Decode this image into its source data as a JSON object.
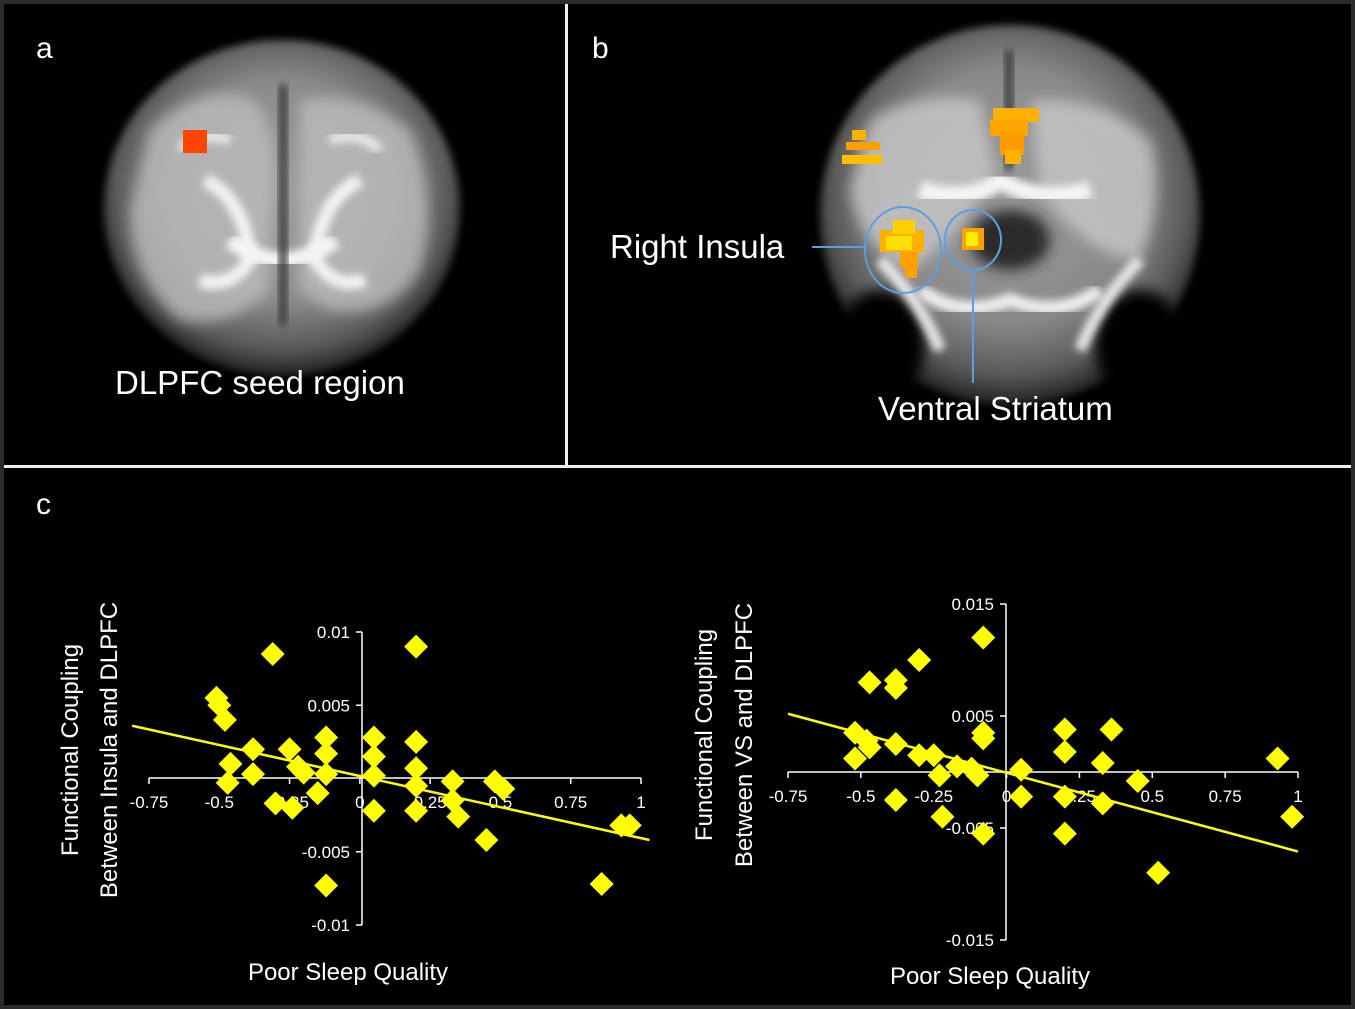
{
  "panels": {
    "a": {
      "letter": "a",
      "caption": "DLPFC seed region"
    },
    "b": {
      "letter": "b",
      "label_insula": "Right Insula",
      "label_vs": "Ventral Striatum"
    },
    "c": {
      "letter": "c"
    }
  },
  "colors": {
    "marker": "#ffff00",
    "trendline": "#ffff00",
    "axis": "#ffffff",
    "seed": "#ff4400",
    "activation": "#ffb000",
    "circle": "#5aa0e0"
  },
  "chart_data": [
    {
      "type": "scatter",
      "title": "",
      "xlabel": "Poor Sleep Quality",
      "ylabel_line1": "Functional Coupling",
      "ylabel_line2": "Between Insula and DLPFC",
      "xlim": [
        -0.75,
        1
      ],
      "ylim": [
        -0.01,
        0.01
      ],
      "xticks": [
        "-0.75",
        "-0.5",
        "-0.25",
        "0",
        "0.25",
        "0.5",
        "0.75",
        "1"
      ],
      "yticks": [
        "0.01",
        "0.005",
        "-0.005",
        "-0.01"
      ],
      "trendline": {
        "x": [
          -0.81,
          1.03
        ],
        "y": [
          0.0036,
          -0.0042
        ]
      },
      "points": [
        [
          -0.51,
          0.0055
        ],
        [
          -0.5,
          0.005
        ],
        [
          -0.48,
          0.004
        ],
        [
          -0.46,
          0.001
        ],
        [
          -0.47,
          -0.0003
        ],
        [
          -0.38,
          0.002
        ],
        [
          -0.38,
          0.0003
        ],
        [
          -0.31,
          0.0085
        ],
        [
          -0.3,
          -0.0017
        ],
        [
          -0.25,
          0.002
        ],
        [
          -0.24,
          -0.002
        ],
        [
          -0.22,
          0.0008
        ],
        [
          -0.2,
          0.0004
        ],
        [
          -0.15,
          -0.001
        ],
        [
          -0.12,
          0.0028
        ],
        [
          -0.12,
          0.0017
        ],
        [
          -0.12,
          0.0003
        ],
        [
          0.05,
          0.0028
        ],
        [
          0.05,
          0.0015
        ],
        [
          0.05,
          0.0002
        ],
        [
          0.05,
          -0.0022
        ],
        [
          0.2,
          0.009
        ],
        [
          0.2,
          0.0025
        ],
        [
          0.2,
          0.0007
        ],
        [
          0.2,
          -0.0005
        ],
        [
          0.2,
          -0.0022
        ],
        [
          0.33,
          -0.0002
        ],
        [
          0.33,
          -0.0015
        ],
        [
          0.35,
          -0.0026
        ],
        [
          0.45,
          -0.0042
        ],
        [
          0.48,
          -0.0002
        ],
        [
          0.51,
          -0.0007
        ],
        [
          -0.12,
          -0.0073
        ],
        [
          0.86,
          -0.0072
        ],
        [
          0.93,
          -0.0032
        ],
        [
          0.96,
          -0.0032
        ]
      ]
    },
    {
      "type": "scatter",
      "title": "",
      "xlabel": "Poor Sleep Quality",
      "ylabel_line1": "Functional Coupling",
      "ylabel_line2": "Between VS and DLPFC",
      "xlim": [
        -0.75,
        1
      ],
      "ylim": [
        -0.015,
        0.015
      ],
      "xticks": [
        "-0.75",
        "-0.5",
        "-0.25",
        "0",
        "0.25",
        "0.5",
        "0.75",
        "1"
      ],
      "yticks": [
        "0.015",
        "0.005",
        "-0.005",
        "-0.015"
      ],
      "trendline": {
        "x": [
          -0.75,
          1.0
        ],
        "y": [
          0.0052,
          -0.0071
        ]
      },
      "points": [
        [
          -0.52,
          0.0035
        ],
        [
          -0.52,
          0.0012
        ],
        [
          -0.47,
          0.008
        ],
        [
          -0.48,
          0.0028
        ],
        [
          -0.47,
          0.0022
        ],
        [
          -0.38,
          0.0082
        ],
        [
          -0.38,
          0.0075
        ],
        [
          -0.38,
          0.0025
        ],
        [
          -0.38,
          -0.0025
        ],
        [
          -0.3,
          0.01
        ],
        [
          -0.3,
          0.0015
        ],
        [
          -0.25,
          0.0015
        ],
        [
          -0.23,
          -0.0003
        ],
        [
          -0.22,
          -0.004
        ],
        [
          -0.17,
          0.0005
        ],
        [
          -0.12,
          0.0003
        ],
        [
          -0.1,
          -0.0003
        ],
        [
          -0.08,
          0.012
        ],
        [
          -0.08,
          0.0035
        ],
        [
          -0.08,
          0.003
        ],
        [
          -0.08,
          -0.0055
        ],
        [
          0.05,
          0.0002
        ],
        [
          0.05,
          -0.0022
        ],
        [
          0.2,
          0.0038
        ],
        [
          0.2,
          0.0018
        ],
        [
          0.2,
          -0.0022
        ],
        [
          0.2,
          -0.0055
        ],
        [
          0.33,
          0.0008
        ],
        [
          0.33,
          -0.0028
        ],
        [
          0.36,
          0.0038
        ],
        [
          0.45,
          -0.0008
        ],
        [
          0.52,
          -0.009
        ],
        [
          0.93,
          0.0012
        ],
        [
          0.98,
          -0.004
        ]
      ]
    }
  ]
}
